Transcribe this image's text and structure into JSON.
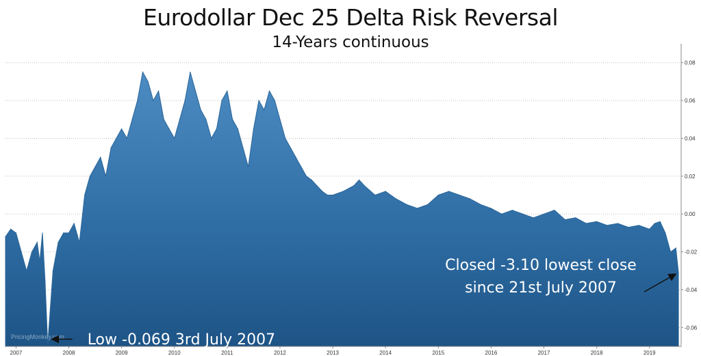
{
  "chart_data": {
    "type": "area",
    "title": "Eurodollar Dec 25 Delta Risk Reversal",
    "subtitle": "14-Years continuous",
    "xlabel": "",
    "ylabel": "",
    "xlim": [
      2006.8,
      2019.6
    ],
    "ylim": [
      -0.07,
      0.09
    ],
    "y_ticks": [
      "0.08",
      "0.06",
      "0.04",
      "0.02",
      "0.00",
      "-0.02",
      "-0.04",
      "-0.06"
    ],
    "y_tick_values": [
      0.08,
      0.06,
      0.04,
      0.02,
      0.0,
      -0.02,
      -0.04,
      -0.06
    ],
    "x_ticks": [
      "2007",
      "2008",
      "2009",
      "2010",
      "2011",
      "2012",
      "2013",
      "2014",
      "2015",
      "2016",
      "2017",
      "2018",
      "2019"
    ],
    "x_tick_values": [
      2007,
      2008,
      2009,
      2010,
      2011,
      2012,
      2013,
      2014,
      2015,
      2016,
      2017,
      2018,
      2019
    ],
    "grid": "horizontal dotted",
    "series": [
      {
        "color": "#2f6da2",
        "x": [
          2006.8,
          2006.9,
          2007.0,
          2007.1,
          2007.2,
          2007.3,
          2007.4,
          2007.45,
          2007.5,
          2007.55,
          2007.6,
          2007.7,
          2007.8,
          2007.9,
          2008.0,
          2008.1,
          2008.2,
          2008.3,
          2008.4,
          2008.5,
          2008.6,
          2008.7,
          2008.8,
          2008.9,
          2009.0,
          2009.1,
          2009.2,
          2009.3,
          2009.4,
          2009.5,
          2009.6,
          2009.7,
          2009.8,
          2009.9,
          2010.0,
          2010.1,
          2010.2,
          2010.3,
          2010.4,
          2010.5,
          2010.6,
          2010.7,
          2010.8,
          2010.9,
          2011.0,
          2011.1,
          2011.2,
          2011.3,
          2011.4,
          2011.5,
          2011.6,
          2011.7,
          2011.8,
          2011.9,
          2012.0,
          2012.1,
          2012.2,
          2012.3,
          2012.4,
          2012.5,
          2012.6,
          2012.7,
          2012.8,
          2012.9,
          2013.0,
          2013.2,
          2013.4,
          2013.5,
          2013.6,
          2013.8,
          2014.0,
          2014.2,
          2014.4,
          2014.6,
          2014.8,
          2015.0,
          2015.2,
          2015.4,
          2015.6,
          2015.8,
          2016.0,
          2016.2,
          2016.4,
          2016.6,
          2016.8,
          2017.0,
          2017.2,
          2017.4,
          2017.6,
          2017.8,
          2018.0,
          2018.2,
          2018.4,
          2018.6,
          2018.8,
          2019.0,
          2019.1,
          2019.2,
          2019.3,
          2019.35,
          2019.4,
          2019.5,
          2019.55
        ],
        "y": [
          -0.012,
          -0.008,
          -0.01,
          -0.02,
          -0.03,
          -0.02,
          -0.015,
          -0.025,
          -0.01,
          -0.035,
          -0.069,
          -0.03,
          -0.015,
          -0.01,
          -0.01,
          -0.005,
          -0.015,
          0.01,
          0.02,
          0.025,
          0.03,
          0.02,
          0.035,
          0.04,
          0.045,
          0.04,
          0.05,
          0.06,
          0.075,
          0.07,
          0.06,
          0.065,
          0.05,
          0.045,
          0.04,
          0.05,
          0.06,
          0.075,
          0.065,
          0.055,
          0.05,
          0.04,
          0.045,
          0.06,
          0.065,
          0.05,
          0.045,
          0.035,
          0.025,
          0.045,
          0.06,
          0.055,
          0.065,
          0.06,
          0.05,
          0.04,
          0.035,
          0.03,
          0.025,
          0.02,
          0.018,
          0.015,
          0.012,
          0.01,
          0.01,
          0.012,
          0.015,
          0.018,
          0.015,
          0.01,
          0.012,
          0.008,
          0.005,
          0.003,
          0.005,
          0.01,
          0.012,
          0.01,
          0.008,
          0.005,
          0.003,
          0.0,
          0.002,
          0.0,
          -0.002,
          0.0,
          0.002,
          -0.003,
          -0.002,
          -0.005,
          -0.004,
          -0.006,
          -0.005,
          -0.007,
          -0.006,
          -0.008,
          -0.005,
          -0.004,
          -0.01,
          -0.015,
          -0.02,
          -0.018,
          -0.031
        ]
      }
    ],
    "annotations": [
      {
        "text": "Low -0.069 3rd July 2007",
        "x": 2007.6,
        "y": -0.066
      },
      {
        "text_lines": [
          "Closed -3.10 lowest close",
          "since 21st July 2007"
        ],
        "x": 2019.55,
        "y": -0.031
      }
    ],
    "watermark": "PricingMonkey.com"
  }
}
